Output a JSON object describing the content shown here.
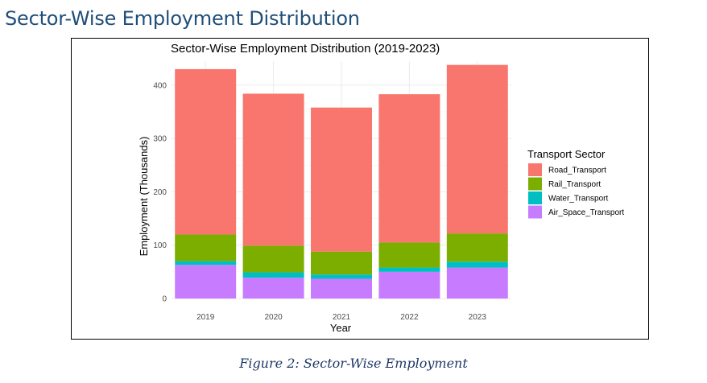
{
  "doc": {
    "heading": "Sector-Wise Employment Distribution",
    "caption": "Figure 2: Sector-Wise Employment"
  },
  "chart_data": {
    "type": "bar",
    "stacked": true,
    "title": "Sector-Wise Employment Distribution (2019-2023)",
    "xlabel": "Year",
    "ylabel": "Employment (Thousands)",
    "categories": [
      "2019",
      "2020",
      "2021",
      "2022",
      "2023"
    ],
    "ylim": [
      0,
      445
    ],
    "yticks": [
      0,
      100,
      200,
      300,
      400
    ],
    "grid": true,
    "legend": {
      "title": "Transport Sector",
      "position": "right"
    },
    "series": [
      {
        "name": "Road_Transport",
        "color": "#F8766D",
        "values": [
          310,
          285,
          270,
          278,
          316
        ]
      },
      {
        "name": "Rail_Transport",
        "color": "#7CAE00",
        "values": [
          50,
          50,
          43,
          47,
          53
        ]
      },
      {
        "name": "Water_Transport",
        "color": "#00BFC4",
        "values": [
          7,
          10,
          8,
          8,
          11
        ]
      },
      {
        "name": "Air_Space_Transport",
        "color": "#C77CFF",
        "values": [
          63,
          39,
          37,
          50,
          58
        ]
      }
    ]
  }
}
